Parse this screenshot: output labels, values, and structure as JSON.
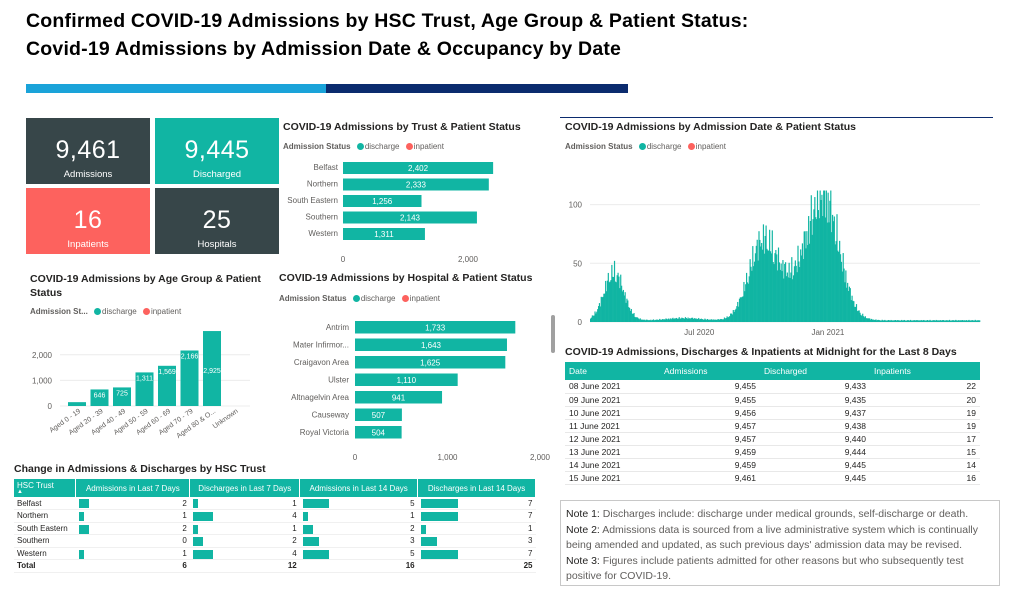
{
  "title_line1": "Confirmed  COVID-19  Admissions  by  HSC  Trust,  Age  Group  &  Patient  Status:",
  "title_line2": "Covid-19  Admissions  by  Admission  Date  &  Occupancy  by  Date",
  "colors": {
    "teal": "#11b5a3",
    "coral": "#fd625e",
    "slate": "#374649",
    "blue_light": "#1aa3d9",
    "blue_dark": "#0b2b6e"
  },
  "cards": [
    {
      "value": "9,461",
      "label": "Admissions"
    },
    {
      "value": "9,445",
      "label": "Discharged"
    },
    {
      "value": "16",
      "label": "Inpatients"
    },
    {
      "value": "25",
      "label": "Hospitals"
    }
  ],
  "legend": {
    "status_label": "Admission Status",
    "status_label_short": "Admission St...",
    "discharge": "discharge",
    "inpatient": "inpatient"
  },
  "chart_data": [
    {
      "type": "bar",
      "orientation": "horizontal",
      "title": "COVID-19 Admissions by Trust & Patient Status",
      "categories": [
        "Belfast",
        "Northern",
        "South Eastern",
        "Southern",
        "Western"
      ],
      "series": [
        {
          "name": "discharge",
          "values": [
            2402,
            2333,
            1256,
            2143,
            1311
          ]
        }
      ],
      "data_labels": [
        "2,402",
        "2,333",
        "1,256",
        "2,143",
        "1,311"
      ],
      "xticks": [
        "0",
        "2,000"
      ],
      "xlim": [
        0,
        2800
      ]
    },
    {
      "type": "bar",
      "title": "COVID-19 Admissions by Age Group & Patient Status",
      "categories": [
        "Aged 0 - 19",
        "Aged 20 - 39",
        "Aged 40 - 49",
        "Aged 50 - 59",
        "Aged 60 - 69",
        "Aged 70 - 79",
        "Aged 80 & O...",
        "Unknown"
      ],
      "series": [
        {
          "name": "discharge",
          "values": [
            150,
            646,
            725,
            1311,
            1569,
            2166,
            2925,
            0
          ]
        }
      ],
      "data_labels": [
        "",
        "646",
        "725",
        "1,311",
        "1,569",
        "2,166",
        "2,925",
        ""
      ],
      "yticks": [
        "0",
        "1,000",
        "2,000"
      ],
      "ylim": [
        0,
        3200
      ]
    },
    {
      "type": "bar",
      "orientation": "horizontal",
      "title": "COVID-19 Admissions by Hospital & Patient Status",
      "categories": [
        "Antrim",
        "Mater Infirmor...",
        "Craigavon Area",
        "Ulster",
        "Altnagelvin Area",
        "Causeway",
        "Royal Victoria"
      ],
      "series": [
        {
          "name": "discharge",
          "values": [
            1733,
            1643,
            1625,
            1110,
            941,
            507,
            504
          ]
        }
      ],
      "data_labels": [
        "1,733",
        "1,643",
        "1,625",
        "1,110",
        "941",
        "507",
        "504"
      ],
      "xticks": [
        "0",
        "1,000",
        "2,000"
      ],
      "xlim": [
        0,
        2000
      ]
    },
    {
      "type": "bar",
      "title": "COVID-19 Admissions by Admission Date & Patient Status",
      "series": [
        {
          "name": "discharge"
        }
      ],
      "yticks": [
        "0",
        "50",
        "100"
      ],
      "ylim": [
        0,
        115
      ],
      "xticks": [
        "Jul 2020",
        "Jan 2021"
      ],
      "peaks": [
        {
          "period": "Apr 2020",
          "value": 45
        },
        {
          "period": "Oct 2020",
          "value": 70
        },
        {
          "period": "Jan 2021",
          "value": 110
        }
      ]
    }
  ],
  "table8": {
    "title": "COVID-19 Admissions, Discharges & Inpatients at Midnight for the Last 8 Days",
    "headers": [
      "Date",
      "Admissions",
      "Discharged",
      "Inpatients"
    ],
    "rows": [
      [
        "08 June 2021",
        "9,455",
        "9,433",
        "22"
      ],
      [
        "09 June 2021",
        "9,455",
        "9,435",
        "20"
      ],
      [
        "10 June 2021",
        "9,456",
        "9,437",
        "19"
      ],
      [
        "11 June 2021",
        "9,457",
        "9,438",
        "19"
      ],
      [
        "12 June 2021",
        "9,457",
        "9,440",
        "17"
      ],
      [
        "13 June 2021",
        "9,459",
        "9,444",
        "15"
      ],
      [
        "14 June 2021",
        "9,459",
        "9,445",
        "14"
      ],
      [
        "15 June 2021",
        "9,461",
        "9,445",
        "16"
      ]
    ]
  },
  "change_table": {
    "title": "Change in Admissions & Discharges by HSC Trust",
    "headers": [
      "HSC Trust",
      "Admissions in Last 7 Days",
      "Discharges in Last 7 Days",
      "Admissions in Last 14 Days",
      "Discharges in Last 14 Days"
    ],
    "rows": [
      [
        "Belfast",
        "2",
        "1",
        "5",
        "7"
      ],
      [
        "Northern",
        "1",
        "4",
        "1",
        "7"
      ],
      [
        "South Eastern",
        "2",
        "1",
        "2",
        "1"
      ],
      [
        "Southern",
        "0",
        "2",
        "3",
        "3"
      ],
      [
        "Western",
        "1",
        "4",
        "5",
        "7"
      ]
    ],
    "total": [
      "Total",
      "6",
      "12",
      "16",
      "25"
    ]
  },
  "notes": [
    {
      "label": "Note 1:",
      "text": " Discharges include: discharge under medical grounds, self-discharge or death."
    },
    {
      "label": "Note 2:",
      "text": " Admissions data is sourced from a live administrative system which is continually being amended and updated, as such previous days' admission data may be revised."
    },
    {
      "label": "Note 3:",
      "text": " Figures include patients admitted for other reasons but who subsequently test positive for COVID-19."
    }
  ]
}
